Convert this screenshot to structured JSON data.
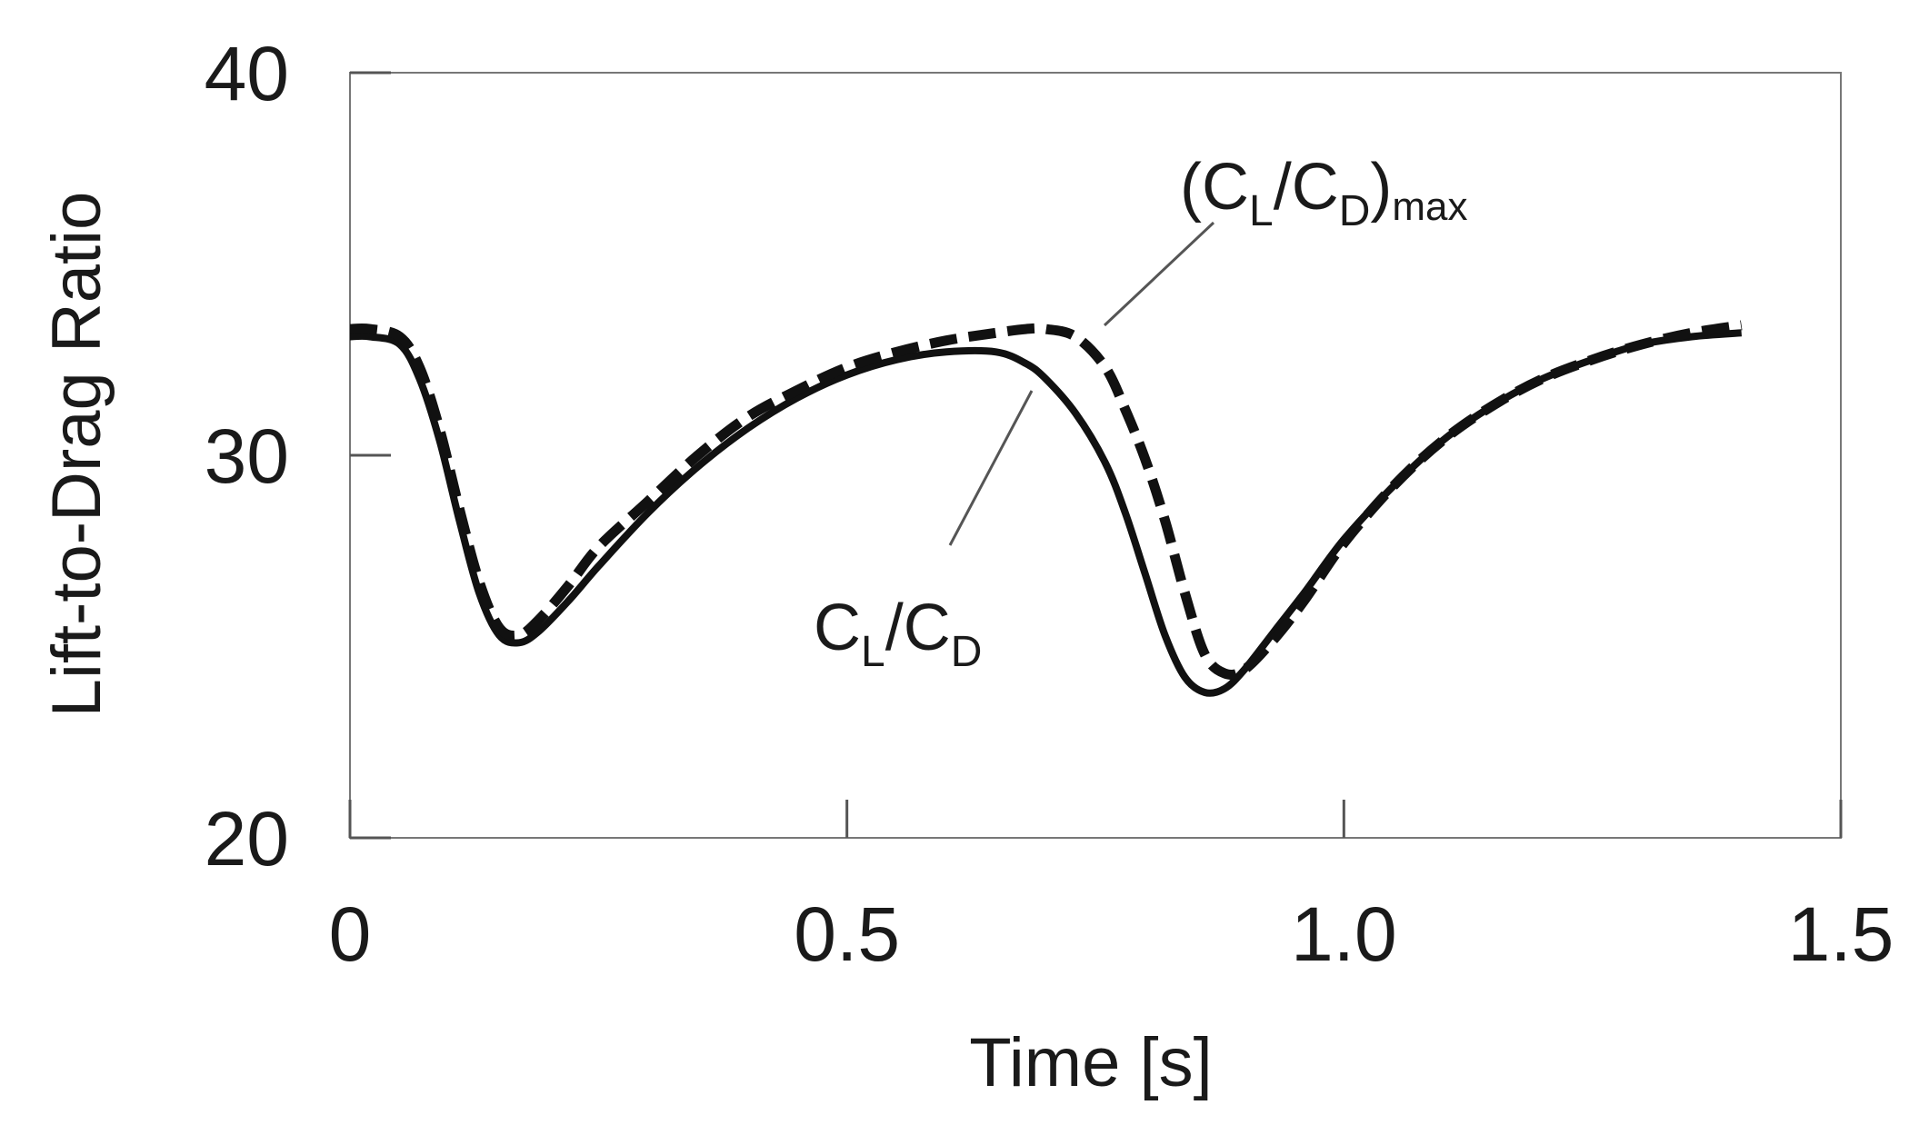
{
  "chart_data": {
    "type": "line",
    "title": "",
    "xlabel": "Time [s]",
    "ylabel": "Lift-to-Drag Ratio",
    "xlim": [
      0,
      1.5
    ],
    "ylim": [
      20,
      40
    ],
    "x_tick_labels": [
      "0",
      "0.5",
      "1.0",
      "1.5"
    ],
    "y_tick_labels": [
      "20",
      "30",
      "40"
    ],
    "grid": false,
    "series": [
      {
        "name": "CL/CD",
        "style": "solid",
        "color": "#111111",
        "x": [
          0.0,
          0.02,
          0.05,
          0.07,
          0.09,
          0.11,
          0.13,
          0.15,
          0.17,
          0.19,
          0.22,
          0.25,
          0.3,
          0.35,
          0.4,
          0.45,
          0.5,
          0.55,
          0.6,
          0.65,
          0.68,
          0.7,
          0.73,
          0.76,
          0.78,
          0.8,
          0.82,
          0.84,
          0.86,
          0.88,
          0.9,
          0.93,
          0.96,
          1.0,
          1.05,
          1.1,
          1.15,
          1.2,
          1.25,
          1.3,
          1.35,
          1.4
        ],
        "y": [
          33.1,
          33.1,
          32.9,
          32.0,
          30.4,
          28.3,
          26.4,
          25.3,
          25.1,
          25.4,
          26.2,
          27.1,
          28.5,
          29.7,
          30.7,
          31.5,
          32.1,
          32.5,
          32.7,
          32.7,
          32.4,
          32.0,
          31.1,
          29.8,
          28.5,
          26.9,
          25.3,
          24.2,
          23.8,
          23.9,
          24.4,
          25.4,
          26.4,
          27.8,
          29.2,
          30.4,
          31.3,
          32.0,
          32.5,
          32.9,
          33.1,
          33.2
        ],
        "legend_label": {
          "main": "C",
          "sub1": "L",
          "slash": "/C",
          "sub2": "D",
          "tail": ""
        }
      },
      {
        "name": "(CL/CD)max",
        "style": "dashed",
        "color": "#111111",
        "x": [
          0.0,
          0.02,
          0.05,
          0.07,
          0.09,
          0.11,
          0.13,
          0.15,
          0.17,
          0.19,
          0.22,
          0.25,
          0.3,
          0.35,
          0.4,
          0.45,
          0.5,
          0.55,
          0.6,
          0.65,
          0.68,
          0.7,
          0.73,
          0.76,
          0.78,
          0.8,
          0.82,
          0.84,
          0.86,
          0.88,
          0.9,
          0.93,
          0.96,
          1.0,
          1.05,
          1.1,
          1.15,
          1.2,
          1.25,
          1.3,
          1.35,
          1.4
        ],
        "y": [
          33.3,
          33.3,
          33.1,
          32.3,
          30.7,
          28.6,
          26.7,
          25.5,
          25.3,
          25.7,
          26.6,
          27.6,
          28.8,
          30.0,
          31.0,
          31.7,
          32.3,
          32.7,
          33.0,
          33.2,
          33.3,
          33.3,
          33.1,
          32.3,
          31.2,
          29.9,
          28.3,
          26.4,
          24.8,
          24.3,
          24.4,
          25.2,
          26.2,
          27.7,
          29.2,
          30.4,
          31.3,
          32.0,
          32.5,
          32.9,
          33.2,
          33.4
        ],
        "legend_label": {
          "main": "(C",
          "sub1": "L",
          "slash": "/C",
          "sub2": "D",
          "tail": ")"
        }
      }
    ],
    "annotations": [
      {
        "series": "(CL/CD)max",
        "subscript_max": "max"
      },
      {
        "series": "CL/CD"
      }
    ]
  }
}
